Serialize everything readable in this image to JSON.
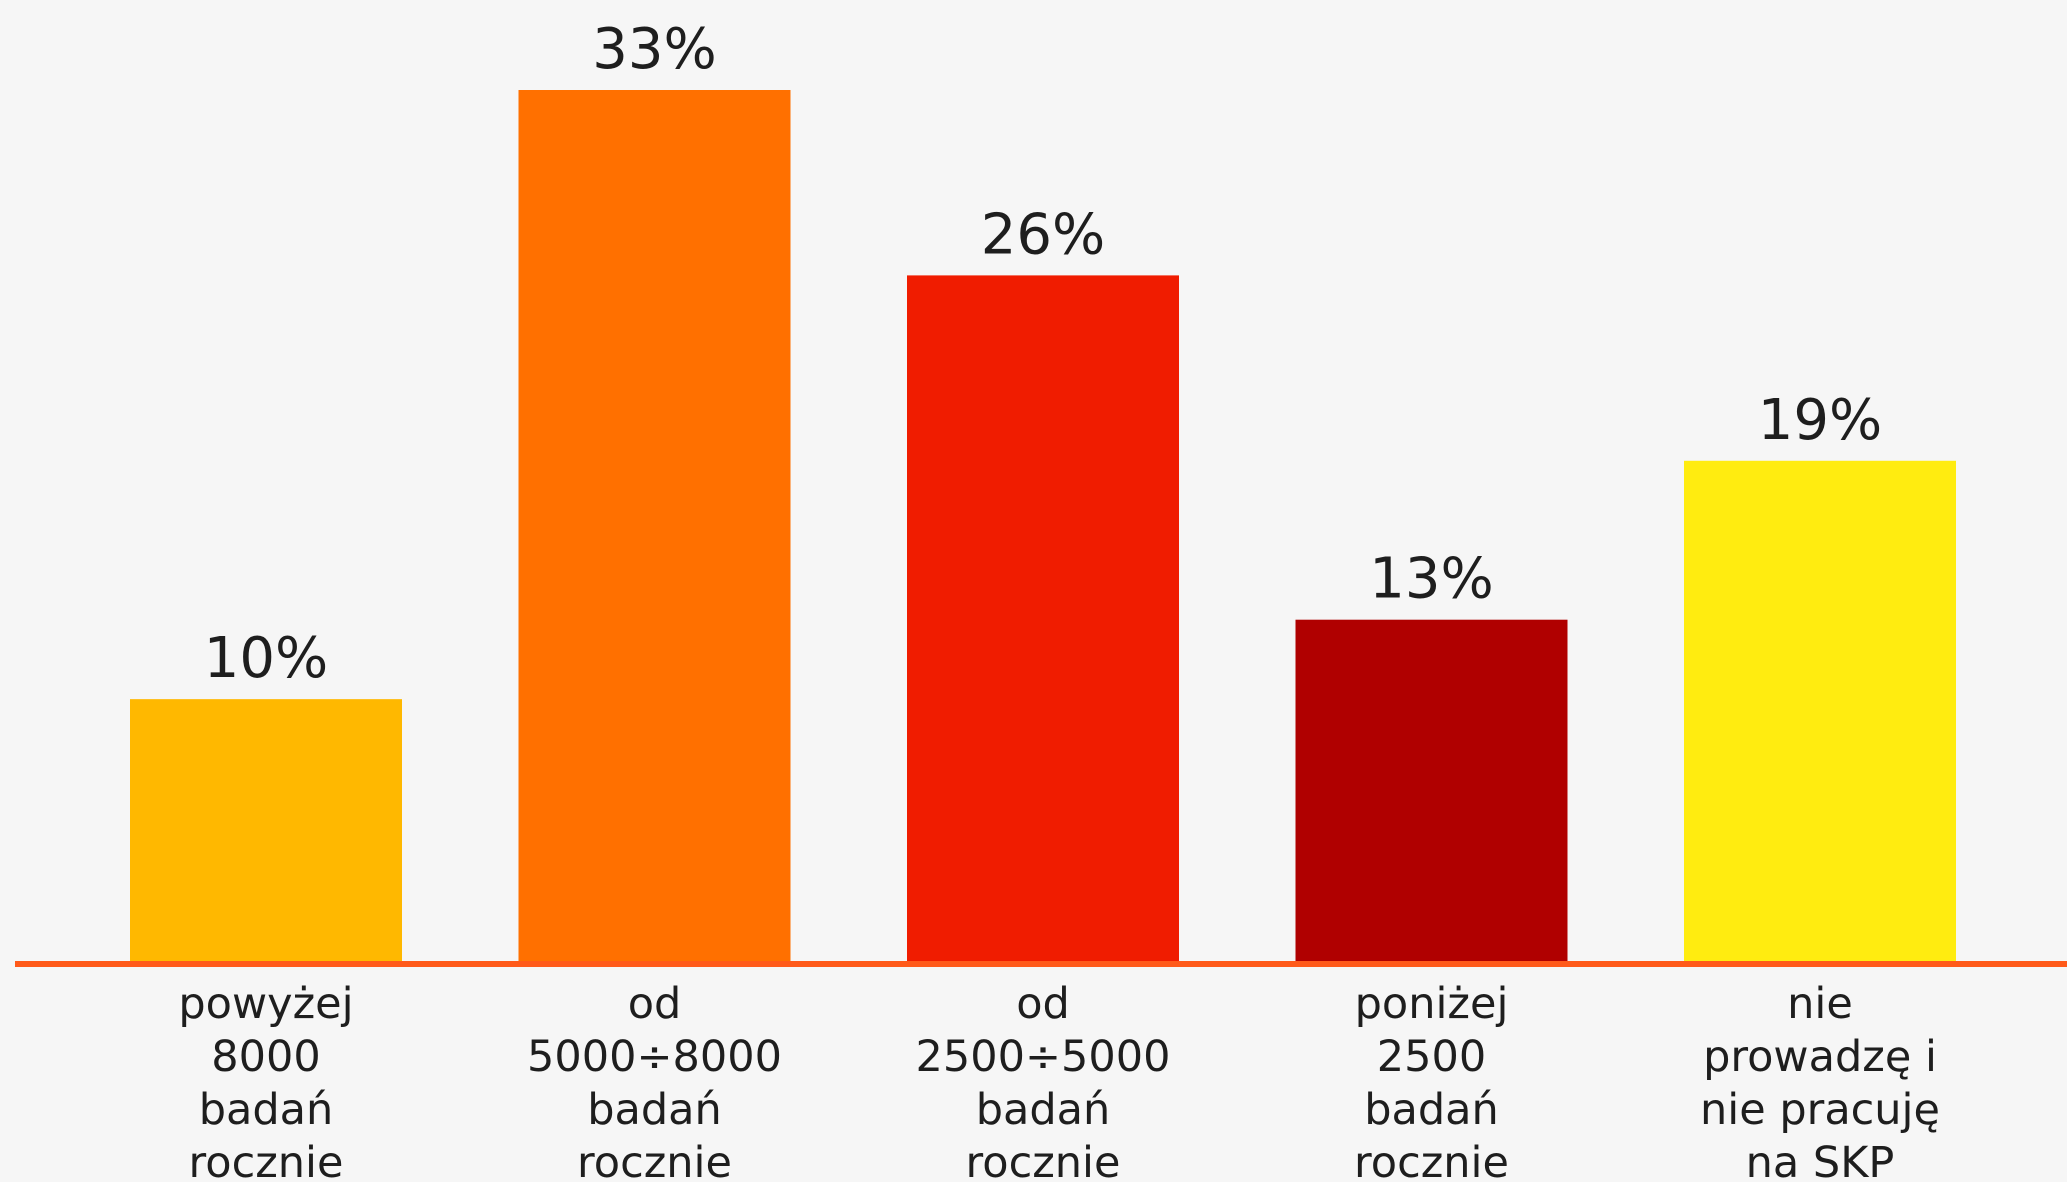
{
  "chart_data": {
    "type": "bar",
    "categories": [
      [
        "powyżej",
        "8000",
        "badań",
        "rocznie"
      ],
      [
        "od",
        "5000÷8000",
        "badań",
        "rocznie"
      ],
      [
        "od",
        "2500÷5000",
        "badań",
        "rocznie"
      ],
      [
        "poniżej",
        "2500",
        "badań",
        "rocznie"
      ],
      [
        "nie",
        "prowadzę i",
        "nie pracuję",
        "na SKP"
      ]
    ],
    "values": [
      10,
      33,
      26,
      13,
      19
    ],
    "value_labels": [
      "10%",
      "33%",
      "26%",
      "13%",
      "19%"
    ],
    "colors": [
      "#ffb800",
      "#ff7000",
      "#f01c00",
      "#b00000",
      "#ffec10"
    ],
    "axis_color": "#ff5a1a",
    "ylim": [
      0,
      33
    ],
    "grid": false,
    "legend": "none"
  }
}
